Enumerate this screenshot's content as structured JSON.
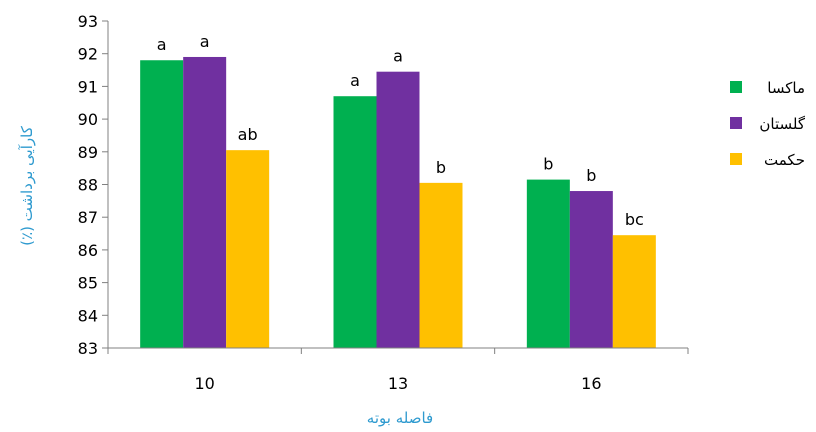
{
  "chart_data": {
    "type": "bar",
    "title": "",
    "xlabel": "فاصله بوته",
    "ylabel": "کارآیی برداشت (٪)",
    "categories": [
      "10",
      "13",
      "16"
    ],
    "ylim": [
      83,
      93
    ],
    "yticks": [
      83,
      84,
      85,
      86,
      87,
      88,
      89,
      90,
      91,
      92,
      93
    ],
    "grid": false,
    "legend_position": "right",
    "series": [
      {
        "name": "ماکسا",
        "color": "#00B050",
        "values": [
          91.8,
          90.7,
          88.15
        ],
        "letters": [
          "a",
          "a",
          "b"
        ]
      },
      {
        "name": "گلستان",
        "color": "#7030A0",
        "values": [
          91.9,
          91.45,
          87.8
        ],
        "letters": [
          "a",
          "a",
          "b"
        ]
      },
      {
        "name": "حکمت",
        "color": "#FFC000",
        "values": [
          89.05,
          88.05,
          86.45
        ],
        "letters": [
          "ab",
          "b",
          "bc"
        ]
      }
    ]
  }
}
